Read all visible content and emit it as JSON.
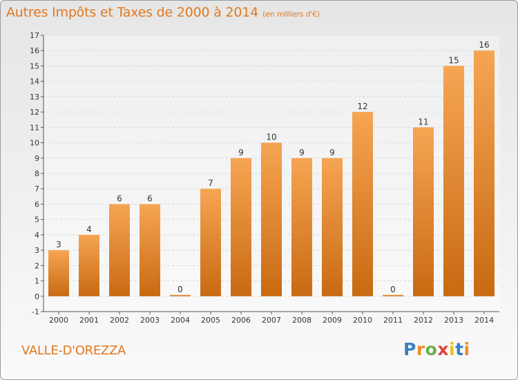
{
  "header": {
    "title": "Autres Impôts et Taxes de 2000 à 2014",
    "unit": "(en milliers d'€)"
  },
  "footer": {
    "commune": "VALLE-D'OREZZA",
    "logo_letters": [
      "P",
      "r",
      "o",
      "x",
      "i",
      "t",
      "i"
    ],
    "logo_colors": [
      "#3a7fc1",
      "#f08c1e",
      "#6ab04c",
      "#e04040",
      "#f0c020",
      "#3a7fc1",
      "#f08c1e"
    ]
  },
  "colors": {
    "bar_light": "#f6a553",
    "bar_dark": "#c86a12",
    "accent": "#e07820",
    "grid": "#d8d8d8"
  },
  "chart_data": {
    "type": "bar",
    "categories": [
      "2000",
      "2001",
      "2002",
      "2003",
      "2004",
      "2005",
      "2006",
      "2007",
      "2008",
      "2009",
      "2010",
      "2011",
      "2012",
      "2013",
      "2014"
    ],
    "values": [
      3,
      4,
      6,
      6,
      0,
      7,
      9,
      10,
      9,
      9,
      12,
      0,
      11,
      15,
      16
    ],
    "title": "Autres Impôts et Taxes de 2000 à 2014",
    "xlabel": "",
    "ylabel": "",
    "ylim": [
      -1,
      17
    ],
    "yticks": [
      -1,
      0,
      1,
      2,
      3,
      4,
      5,
      6,
      7,
      8,
      9,
      10,
      11,
      12,
      13,
      14,
      15,
      16,
      17
    ],
    "grid": true
  }
}
